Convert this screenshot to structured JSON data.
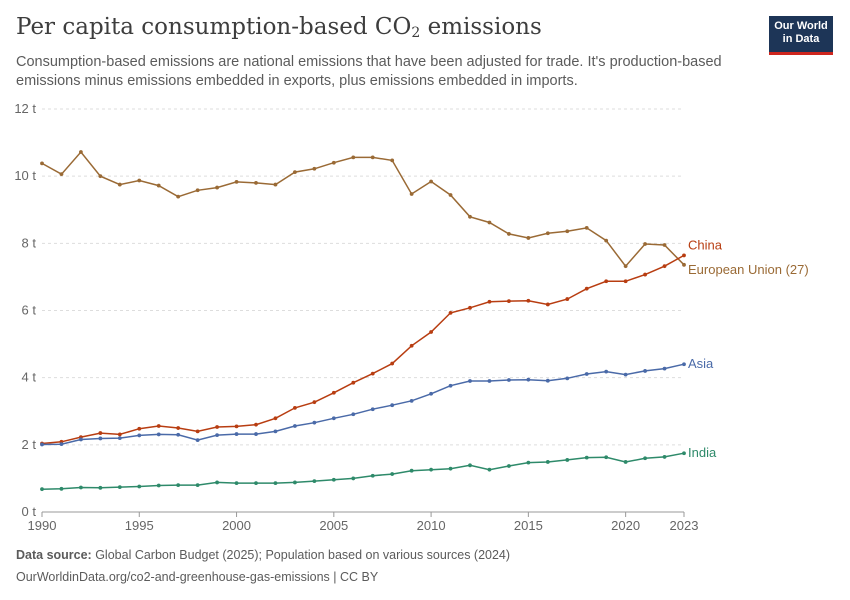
{
  "header": {
    "title_prefix": "Per capita consumption-based CO",
    "title_sub": "2",
    "title_suffix": " emissions",
    "subtitle": "Consumption-based emissions are national emissions that have been adjusted for trade. It's production-based emissions minus emissions embedded in exports, plus emissions embedded in imports."
  },
  "logo": {
    "line1": "Our World",
    "line2": "in Data"
  },
  "footer": {
    "source_label": "Data source:",
    "source_text": " Global Carbon Budget (2025); Population based on various sources (2024)",
    "url_line": "OurWorldinData.org/co2-and-greenhouse-gas-emissions | CC BY"
  },
  "chart_data": {
    "type": "line",
    "ylim": [
      0,
      12
    ],
    "xlim": [
      1990,
      2023
    ],
    "y_ticks": [
      0,
      2,
      4,
      6,
      8,
      10,
      12
    ],
    "y_tick_labels": [
      "0 t",
      "2 t",
      "4 t",
      "6 t",
      "8 t",
      "10 t",
      "12 t"
    ],
    "x_ticks": [
      1990,
      1995,
      2000,
      2005,
      2010,
      2015,
      2020,
      2023
    ],
    "x_tick_labels": [
      "1990",
      "1995",
      "2000",
      "2005",
      "2010",
      "2015",
      "2020",
      "2023"
    ],
    "grid": "horizontal dashed",
    "x": [
      1990,
      1991,
      1992,
      1993,
      1994,
      1995,
      1996,
      1997,
      1998,
      1999,
      2000,
      2001,
      2002,
      2003,
      2004,
      2005,
      2006,
      2007,
      2008,
      2009,
      2010,
      2011,
      2012,
      2013,
      2014,
      2015,
      2016,
      2017,
      2018,
      2019,
      2020,
      2021,
      2022,
      2023
    ],
    "series": [
      {
        "name": "European Union (27)",
        "color": "#9a6a35",
        "values": [
          10.38,
          10.06,
          10.72,
          10.0,
          9.75,
          9.87,
          9.72,
          9.39,
          9.58,
          9.66,
          9.83,
          9.8,
          9.75,
          10.12,
          10.22,
          10.4,
          10.56,
          10.56,
          10.47,
          9.47,
          9.84,
          9.44,
          8.79,
          8.62,
          8.28,
          8.16,
          8.3,
          8.36,
          8.46,
          8.08,
          7.32,
          7.98,
          7.95,
          7.36
        ]
      },
      {
        "name": "China",
        "color": "#b83d11",
        "values": [
          2.04,
          2.09,
          2.23,
          2.35,
          2.31,
          2.48,
          2.56,
          2.5,
          2.4,
          2.53,
          2.55,
          2.6,
          2.79,
          3.1,
          3.27,
          3.55,
          3.85,
          4.12,
          4.42,
          4.95,
          5.36,
          5.93,
          6.08,
          6.26,
          6.28,
          6.29,
          6.18,
          6.34,
          6.65,
          6.87,
          6.87,
          7.07,
          7.32,
          7.64
        ]
      },
      {
        "name": "Asia",
        "color": "#4a6aa8",
        "values": [
          2.01,
          2.02,
          2.16,
          2.19,
          2.2,
          2.28,
          2.31,
          2.3,
          2.14,
          2.29,
          2.32,
          2.32,
          2.4,
          2.56,
          2.66,
          2.79,
          2.91,
          3.06,
          3.18,
          3.31,
          3.52,
          3.76,
          3.9,
          3.9,
          3.93,
          3.94,
          3.91,
          3.98,
          4.11,
          4.18,
          4.09,
          4.2,
          4.27,
          4.4
        ]
      },
      {
        "name": "India",
        "color": "#2e8a6a",
        "values": [
          0.68,
          0.69,
          0.73,
          0.72,
          0.74,
          0.76,
          0.79,
          0.8,
          0.8,
          0.88,
          0.86,
          0.86,
          0.86,
          0.88,
          0.92,
          0.96,
          1.0,
          1.08,
          1.13,
          1.23,
          1.26,
          1.29,
          1.39,
          1.26,
          1.37,
          1.47,
          1.49,
          1.55,
          1.62,
          1.63,
          1.49,
          1.6,
          1.64,
          1.75
        ]
      }
    ]
  }
}
